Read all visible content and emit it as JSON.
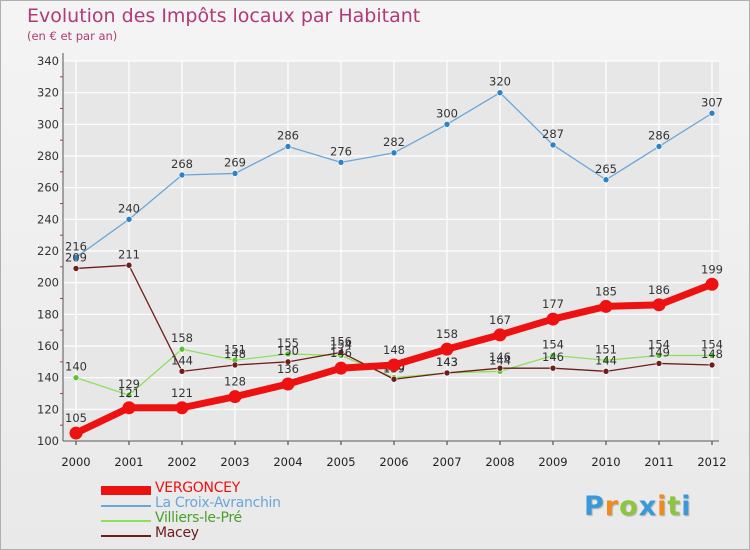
{
  "title": "Evolution des Impôts locaux par Habitant",
  "subtitle": "(en € et par an)",
  "colors": {
    "title": "#b03a78",
    "axis": "#333333",
    "grid": "#ffffff",
    "minor_tick": "#c03070"
  },
  "logo": {
    "letters": [
      "P",
      "r",
      "o",
      "x",
      "i",
      "t",
      "i"
    ],
    "colors": [
      "#3a9ad9",
      "#f08a1c",
      "#8cc63f",
      "#3a9ad9",
      "#f08a1c",
      "#8cc63f",
      "#3a9ad9"
    ]
  },
  "legend": [
    {
      "label": "VERGONCEY",
      "color": "#ee1111",
      "thick": true
    },
    {
      "label": "La Croix-Avranchin",
      "color": "#6aa6da",
      "thick": false
    },
    {
      "label": "Villiers-le-Pré",
      "color": "#8ee05a",
      "thick": false
    },
    {
      "label": "Macey",
      "color": "#6e1c1c",
      "thick": false
    }
  ],
  "chart_data": {
    "type": "line",
    "title": "Evolution des Impôts locaux par Habitant",
    "subtitle": "(en € et par an)",
    "xlabel": "",
    "ylabel": "",
    "ylim": [
      100,
      340
    ],
    "yticks": [
      100,
      120,
      140,
      160,
      180,
      200,
      220,
      240,
      260,
      280,
      300,
      320,
      340
    ],
    "categories": [
      "2000",
      "2001",
      "2002",
      "2003",
      "2004",
      "2005",
      "2006",
      "2007",
      "2008",
      "2009",
      "2010",
      "2011",
      "2012"
    ],
    "series": [
      {
        "name": "La Croix-Avranchin",
        "color": "#6aa6da",
        "marker": "#2a82c8",
        "values": [
          216,
          240,
          268,
          269,
          286,
          276,
          282,
          300,
          320,
          287,
          265,
          286,
          307
        ]
      },
      {
        "name": "Villiers-le-Pré",
        "color": "#8ee05a",
        "marker": "#5ec232",
        "values": [
          140,
          129,
          158,
          151,
          155,
          154,
          140,
          143,
          144,
          154,
          151,
          154,
          154
        ]
      },
      {
        "name": "Macey",
        "color": "#6e1c1c",
        "marker": "#6e1c1c",
        "values": [
          209,
          211,
          144,
          148,
          150,
          156,
          139,
          143,
          146,
          146,
          144,
          149,
          148
        ]
      },
      {
        "name": "VERGONCEY",
        "color": "#ee1111",
        "marker": "#ee1111",
        "values": [
          105,
          121,
          121,
          128,
          136,
          146,
          148,
          158,
          167,
          177,
          185,
          186,
          199
        ]
      }
    ]
  }
}
